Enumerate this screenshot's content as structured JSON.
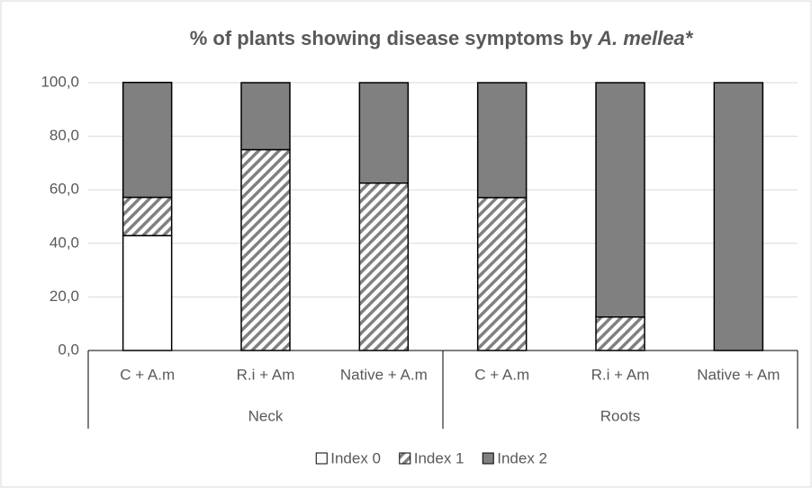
{
  "chart_data": {
    "type": "stacked_bar",
    "title": [
      "% of plants showing disease symptoms by",
      "A. mellea*"
    ],
    "categories": [
      "C + A.m",
      "R.i + Am",
      "Native + A.m",
      "C + A.m",
      "R.i + Am",
      "Native + Am"
    ],
    "group_labels": [
      "Neck",
      "Roots"
    ],
    "series": [
      {
        "name": "Index 0",
        "color": "#ffffff",
        "values": [
          42.9,
          0,
          0,
          0,
          0,
          0
        ]
      },
      {
        "name": "Index 1",
        "color": "#808080",
        "hatch": true,
        "values": [
          14.3,
          75,
          62.5,
          57.1,
          12.5,
          0
        ]
      },
      {
        "name": "Index 2",
        "color": "#808080",
        "values": [
          42.9,
          25,
          37.5,
          42.9,
          87.5,
          100
        ]
      }
    ],
    "ylim": [
      0,
      100
    ],
    "yticks": [
      {
        "value": 0,
        "label": "0,0"
      },
      {
        "value": 20,
        "label": "20,0"
      },
      {
        "value": 40,
        "label": "40,0"
      },
      {
        "value": 60,
        "label": "60,0"
      },
      {
        "value": 80,
        "label": "80,0"
      },
      {
        "value": 100,
        "label": "100,0"
      }
    ],
    "grid": true,
    "legend": "bottom"
  }
}
